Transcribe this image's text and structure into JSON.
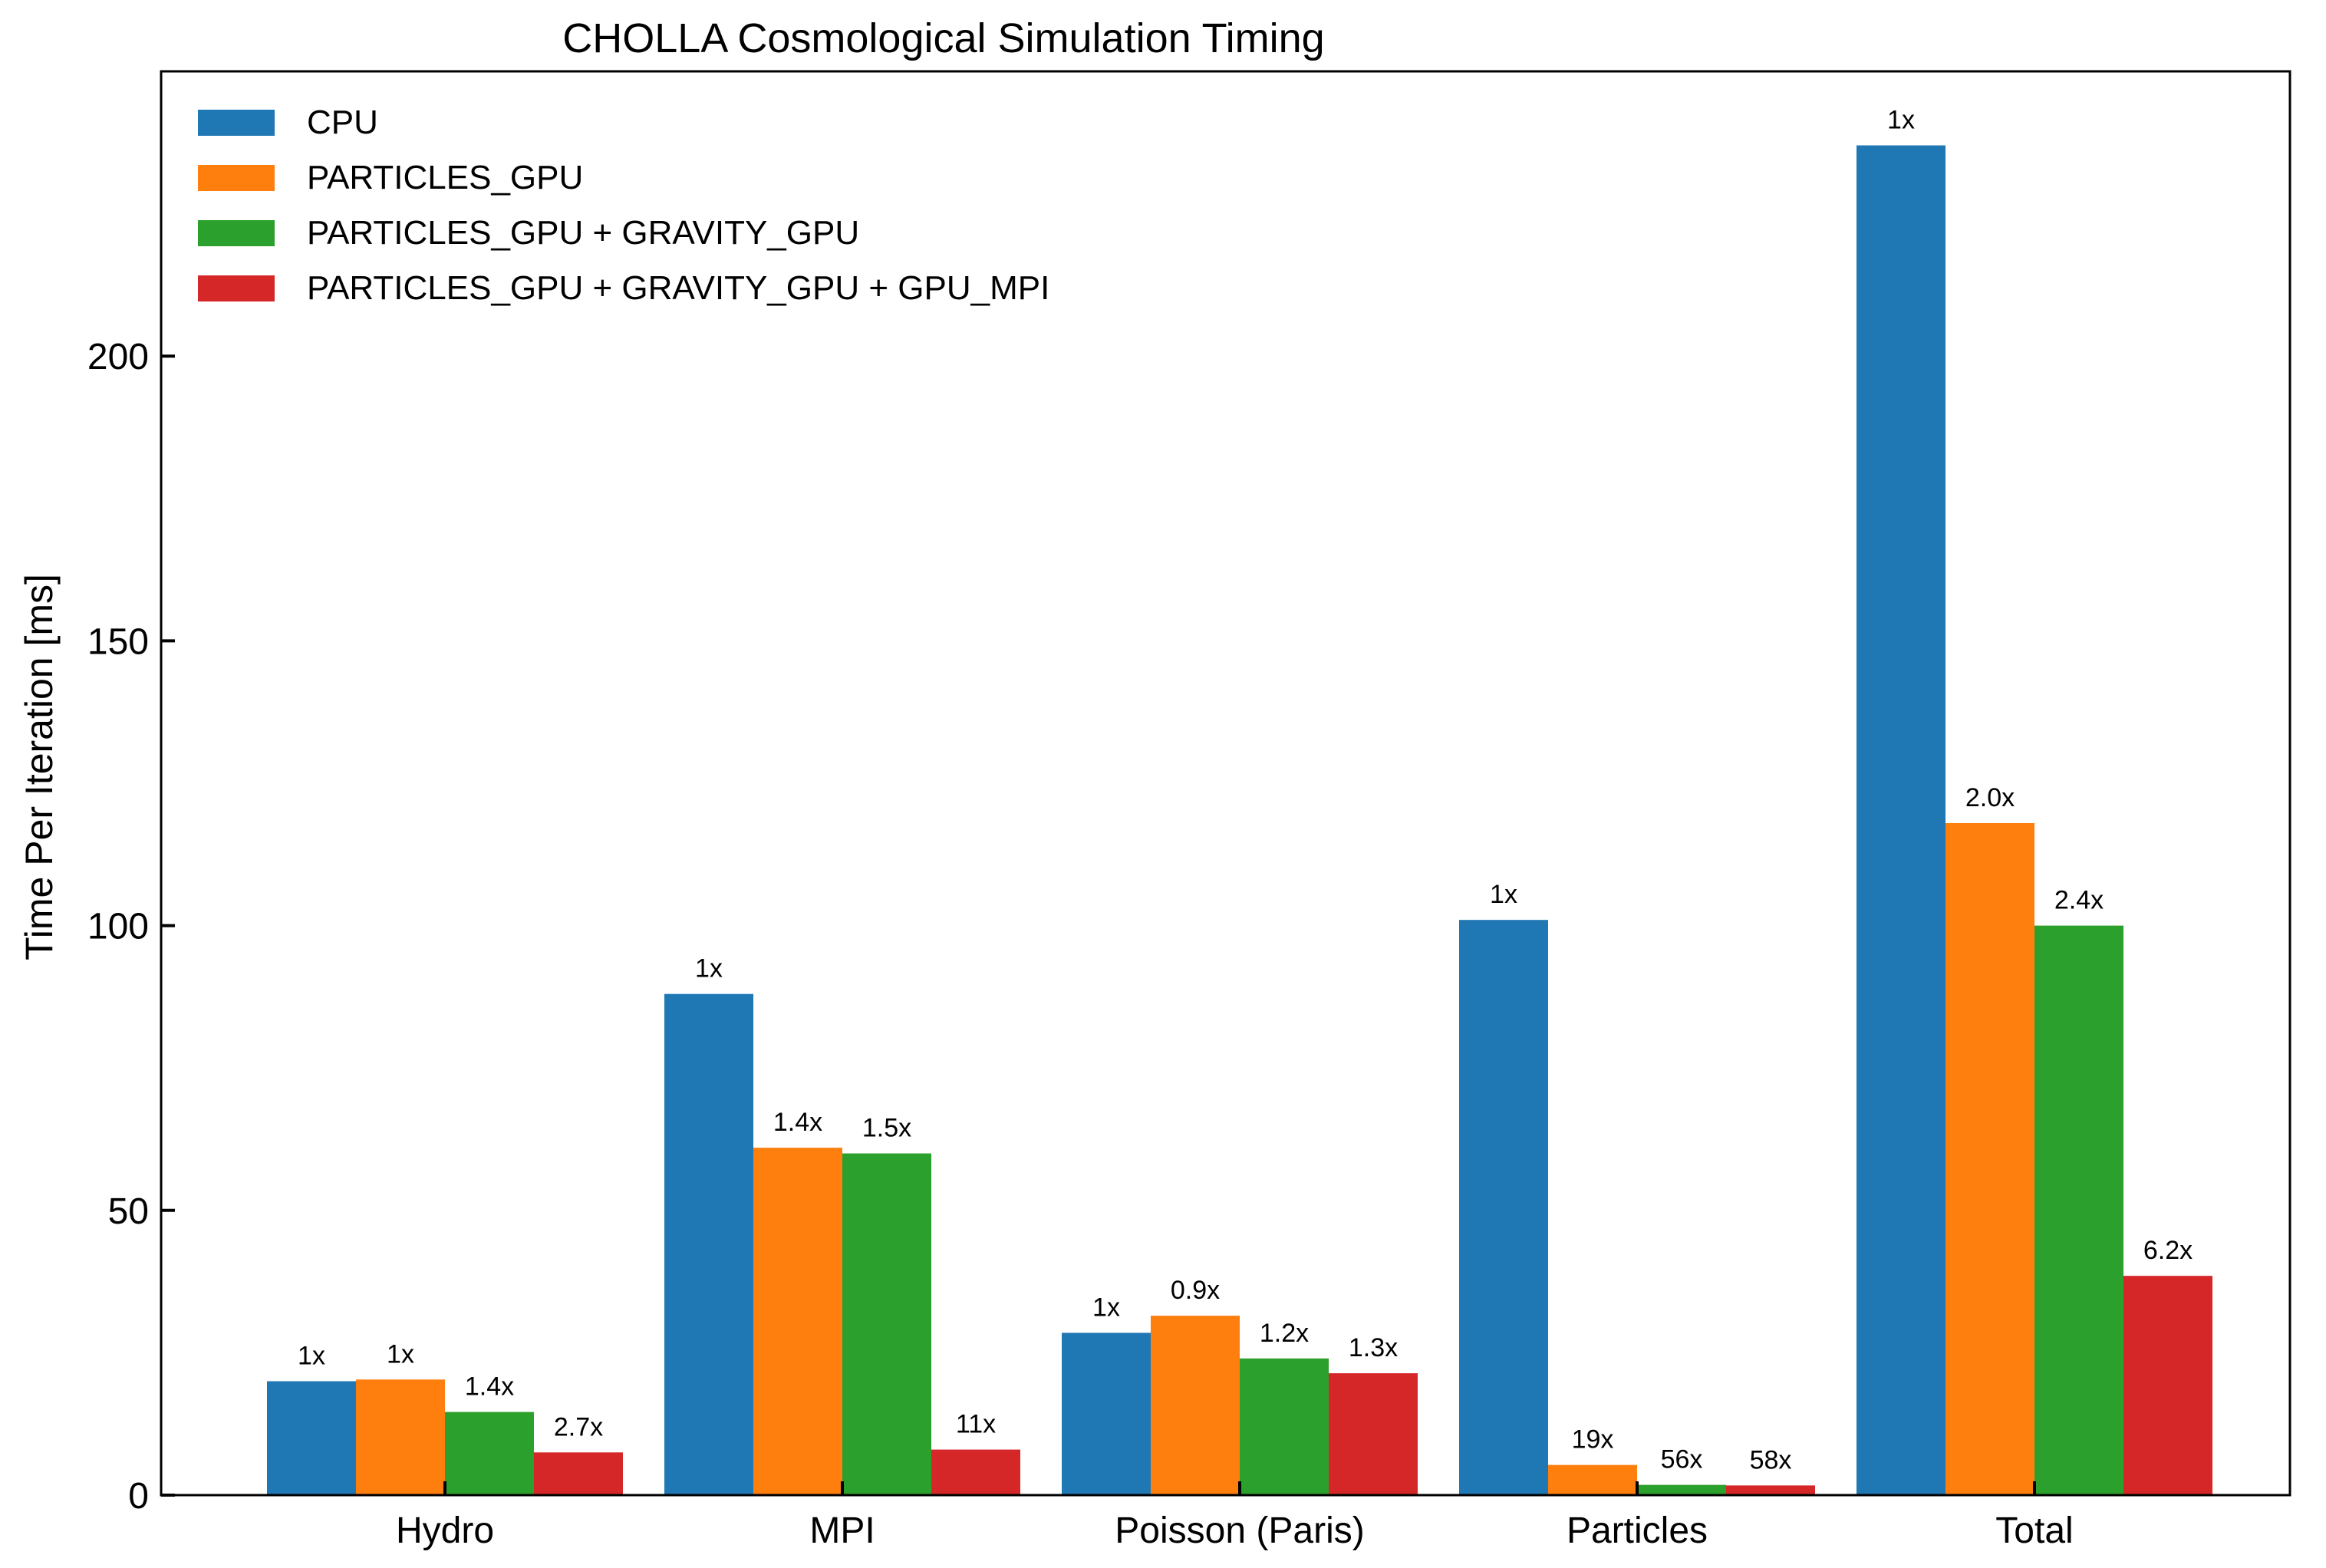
{
  "chart_data": {
    "type": "bar",
    "title": "CHOLLA Cosmological Simulation Timing",
    "xlabel": "",
    "ylabel": "Time Per Iteration  [ms]",
    "ylim": [
      0,
      250
    ],
    "yticks": [
      0,
      50,
      100,
      150,
      200
    ],
    "grid": false,
    "legend_position": "top-left",
    "categories": [
      "Hydro",
      "MPI",
      "Poisson (Paris)",
      "Particles",
      "Total"
    ],
    "series": [
      {
        "name": "CPU",
        "color": "#1f77b4",
        "values": [
          20,
          88,
          28.5,
          101,
          237
        ],
        "labels": [
          "1x",
          "1x",
          "1x",
          "1x",
          "1x"
        ]
      },
      {
        "name": "PARTICLES_GPU",
        "color": "#ff7f0e",
        "values": [
          20.3,
          61,
          31.5,
          5.3,
          118
        ],
        "labels": [
          "1x",
          "1.4x",
          "0.9x",
          "19x",
          "2.0x"
        ]
      },
      {
        "name": "PARTICLES_GPU + GRAVITY_GPU",
        "color": "#2ca02c",
        "values": [
          14.6,
          60,
          24,
          1.8,
          100
        ],
        "labels": [
          "1.4x",
          "1.5x",
          "1.2x",
          "56x",
          "2.4x"
        ]
      },
      {
        "name": "PARTICLES_GPU + GRAVITY_GPU + GPU_MPI",
        "color": "#d62728",
        "values": [
          7.5,
          8,
          21.4,
          1.7,
          38.5
        ],
        "labels": [
          "2.7x",
          "11x",
          "1.3x",
          "58x",
          "6.2x"
        ]
      }
    ]
  }
}
